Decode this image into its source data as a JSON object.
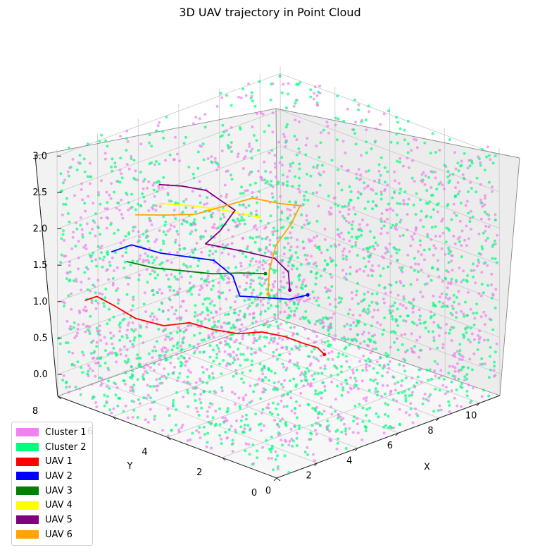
{
  "chart_data": {
    "type": "scatter3d",
    "title": "3D UAV trajectory in Point Cloud",
    "xlabel": "X",
    "ylabel": "Y",
    "zlabel": "",
    "xlim": [
      0,
      11
    ],
    "ylim": [
      0,
      8
    ],
    "zlim": [
      -0.3,
      3.1
    ],
    "x_ticks": [
      "0",
      "2",
      "4",
      "6",
      "8",
      "10"
    ],
    "y_ticks": [
      "0",
      "2",
      "4",
      "6",
      "8"
    ],
    "z_ticks": [
      "0.0",
      "0.5",
      "1.0",
      "1.5",
      "2.0",
      "2.5",
      "3.0"
    ],
    "legend_position": "lower-left",
    "grid": true,
    "clusters": [
      {
        "name": "Cluster 1",
        "color": "#ee82ee",
        "point_count": 1600
      },
      {
        "name": "Cluster 2",
        "color": "#00ff7f",
        "point_count": 1600
      }
    ],
    "series": [
      {
        "name": "UAV 1",
        "color": "#ff0000",
        "points": [
          [
            0.3,
            7.2,
            1.1
          ],
          [
            0.6,
            7.0,
            1.15
          ],
          [
            0.9,
            6.6,
            1.05
          ],
          [
            1.3,
            6.1,
            0.9
          ],
          [
            2.0,
            5.6,
            0.8
          ],
          [
            2.6,
            5.1,
            0.85
          ],
          [
            3.2,
            4.7,
            0.75
          ],
          [
            3.8,
            4.2,
            0.7
          ],
          [
            4.4,
            3.8,
            0.72
          ],
          [
            5.0,
            3.4,
            0.65
          ],
          [
            5.5,
            3.0,
            0.55
          ],
          [
            5.8,
            2.8,
            0.5
          ],
          [
            6.0,
            2.7,
            0.4
          ]
        ]
      },
      {
        "name": "UAV 2",
        "color": "#0000ff",
        "points": [
          [
            0.8,
            6.6,
            1.8
          ],
          [
            1.5,
            6.4,
            1.85
          ],
          [
            2.4,
            6.0,
            1.7
          ],
          [
            3.3,
            5.7,
            1.6
          ],
          [
            4.2,
            5.4,
            1.5
          ],
          [
            4.6,
            5.0,
            1.3
          ],
          [
            4.4,
            4.6,
            1.1
          ],
          [
            5.2,
            4.2,
            1.05
          ],
          [
            5.9,
            3.9,
            1.0
          ],
          [
            6.4,
            3.6,
            1.05
          ]
        ]
      },
      {
        "name": "UAV 3",
        "color": "#008000",
        "points": [
          [
            1.0,
            6.2,
            1.7
          ],
          [
            2.0,
            5.9,
            1.55
          ],
          [
            3.0,
            5.6,
            1.45
          ],
          [
            4.0,
            5.3,
            1.35
          ],
          [
            5.0,
            5.0,
            1.3
          ],
          [
            5.8,
            4.7,
            1.25
          ]
        ]
      },
      {
        "name": "UAV 4",
        "color": "#ffff00",
        "points": [
          [
            4.2,
            7.4,
            2.0
          ],
          [
            5.0,
            7.0,
            1.95
          ],
          [
            6.0,
            6.6,
            1.85
          ],
          [
            6.8,
            6.2,
            1.75
          ],
          [
            7.2,
            6.0,
            1.7
          ]
        ]
      },
      {
        "name": "UAV 5",
        "color": "#800080",
        "points": [
          [
            4.5,
            7.6,
            2.2
          ],
          [
            5.2,
            7.3,
            2.15
          ],
          [
            6.0,
            7.0,
            2.05
          ],
          [
            6.6,
            6.4,
            1.8
          ],
          [
            5.6,
            6.2,
            1.65
          ],
          [
            4.6,
            6.0,
            1.6
          ],
          [
            5.8,
            5.4,
            1.45
          ],
          [
            6.8,
            5.1,
            1.3
          ],
          [
            7.2,
            4.9,
            1.1
          ],
          [
            7.0,
            4.7,
            0.9
          ]
        ]
      },
      {
        "name": "UAV 6",
        "color": "#ffa500",
        "points": [
          [
            3.6,
            7.8,
            1.85
          ],
          [
            4.6,
            7.4,
            1.8
          ],
          [
            5.6,
            7.1,
            1.75
          ],
          [
            6.6,
            6.8,
            1.8
          ],
          [
            7.6,
            6.5,
            1.85
          ],
          [
            8.4,
            6.1,
            1.75
          ],
          [
            9.0,
            5.8,
            1.7
          ],
          [
            8.0,
            5.4,
            1.6
          ],
          [
            7.0,
            5.2,
            1.45
          ],
          [
            6.4,
            5.0,
            1.2
          ],
          [
            6.2,
            4.9,
            0.9
          ]
        ]
      }
    ]
  },
  "legend": {
    "items": [
      {
        "label": "Cluster 1",
        "color": "#ee82ee"
      },
      {
        "label": "Cluster 2",
        "color": "#00ff7f"
      },
      {
        "label": "UAV 1",
        "color": "#ff0000"
      },
      {
        "label": "UAV 2",
        "color": "#0000ff"
      },
      {
        "label": "UAV 3",
        "color": "#008000"
      },
      {
        "label": "UAV 4",
        "color": "#ffff00"
      },
      {
        "label": "UAV 5",
        "color": "#800080"
      },
      {
        "label": "UAV 6",
        "color": "#ffa500"
      }
    ]
  }
}
